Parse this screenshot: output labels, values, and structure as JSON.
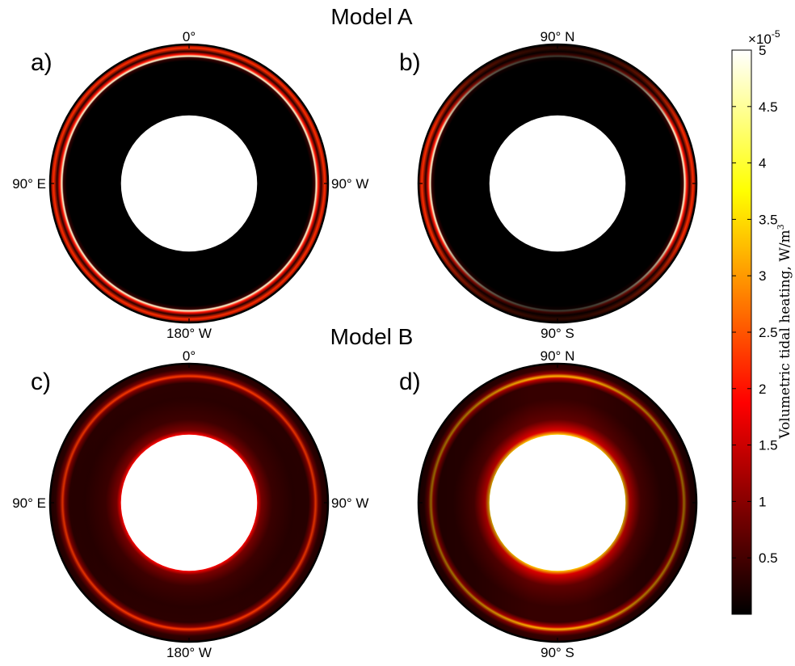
{
  "figure": {
    "model_titles": [
      "Model A",
      "Model B"
    ]
  },
  "chart_data": {
    "type": "heatmap",
    "panels": [
      {
        "id": "a",
        "label": "a)",
        "model": "Model A",
        "tick_labels": {
          "top": "0°",
          "bottom": "180° W",
          "left": "90° E",
          "right": "90° W"
        },
        "inner_radius_fraction": 0.49,
        "profile": [
          {
            "r": 0.49,
            "v": 0.0
          },
          {
            "r": 0.88,
            "v": 0.0
          },
          {
            "r": 0.905,
            "v": 0.4
          },
          {
            "r": 0.915,
            "v": 4.8
          },
          {
            "r": 0.93,
            "v": 2.0
          },
          {
            "r": 0.95,
            "v": 0.3
          },
          {
            "r": 0.975,
            "v": 2.2
          },
          {
            "r": 1.0,
            "v": 0.6
          }
        ],
        "angular_modulation": {
          "amplitude": 0.0,
          "maxima": "none"
        }
      },
      {
        "id": "b",
        "label": "b)",
        "model": "Model A",
        "tick_labels": {
          "top": "90° N",
          "bottom": "90° S",
          "left": "",
          "right": ""
        },
        "inner_radius_fraction": 0.49,
        "profile": [
          {
            "r": 0.49,
            "v": 0.0
          },
          {
            "r": 0.88,
            "v": 0.0
          },
          {
            "r": 0.905,
            "v": 0.4
          },
          {
            "r": 0.915,
            "v": 4.8
          },
          {
            "r": 0.93,
            "v": 2.0
          },
          {
            "r": 0.95,
            "v": 0.3
          },
          {
            "r": 0.975,
            "v": 2.2
          },
          {
            "r": 1.0,
            "v": 0.6
          }
        ],
        "angular_modulation": {
          "amplitude": 0.85,
          "maxima": "equator"
        }
      },
      {
        "id": "c",
        "label": "c)",
        "model": "Model B",
        "tick_labels": {
          "top": "0°",
          "bottom": "180° W",
          "left": "90° E",
          "right": "90° W"
        },
        "inner_radius_fraction": 0.49,
        "profile": [
          {
            "r": 0.49,
            "v": 1.9
          },
          {
            "r": 0.52,
            "v": 0.9
          },
          {
            "r": 0.6,
            "v": 0.45
          },
          {
            "r": 0.75,
            "v": 0.3
          },
          {
            "r": 0.86,
            "v": 0.32
          },
          {
            "r": 0.895,
            "v": 1.0
          },
          {
            "r": 0.91,
            "v": 2.3
          },
          {
            "r": 0.93,
            "v": 0.9
          },
          {
            "r": 0.96,
            "v": 0.35
          },
          {
            "r": 1.0,
            "v": 0.25
          }
        ],
        "angular_modulation": {
          "amplitude": 0.15,
          "maxima": "top-bottom"
        }
      },
      {
        "id": "d",
        "label": "d)",
        "model": "Model B",
        "tick_labels": {
          "top": "90° N",
          "bottom": "90° S",
          "left": "",
          "right": ""
        },
        "inner_radius_fraction": 0.49,
        "profile": [
          {
            "r": 0.49,
            "v": 3.4
          },
          {
            "r": 0.52,
            "v": 1.6
          },
          {
            "r": 0.6,
            "v": 0.7
          },
          {
            "r": 0.75,
            "v": 0.4
          },
          {
            "r": 0.86,
            "v": 0.4
          },
          {
            "r": 0.895,
            "v": 1.4
          },
          {
            "r": 0.91,
            "v": 3.2
          },
          {
            "r": 0.93,
            "v": 1.1
          },
          {
            "r": 0.96,
            "v": 0.4
          },
          {
            "r": 1.0,
            "v": 0.3
          }
        ],
        "angular_modulation": {
          "amplitude": 0.45,
          "maxima": "poles"
        }
      }
    ],
    "colorbar": {
      "colormap": "hot",
      "range": [
        0,
        5
      ],
      "ticks": [
        0.5,
        1,
        1.5,
        2,
        2.5,
        3,
        3.5,
        4,
        4.5,
        5
      ],
      "tick_labels": [
        "0.5",
        "1",
        "1.5",
        "2",
        "2.5",
        "3",
        "3.5",
        "4",
        "4.5",
        "5"
      ],
      "exponent_label": "×10",
      "exponent_power": "-5",
      "label": "Volumetric tidal heating,",
      "units": "W/m",
      "units_power": "3"
    }
  }
}
